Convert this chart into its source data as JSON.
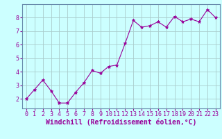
{
  "x": [
    0,
    1,
    2,
    3,
    4,
    5,
    6,
    7,
    8,
    9,
    10,
    11,
    12,
    13,
    14,
    15,
    16,
    17,
    18,
    19,
    20,
    21,
    22,
    23
  ],
  "y": [
    2.0,
    2.7,
    3.4,
    2.6,
    1.7,
    1.7,
    2.5,
    3.2,
    4.1,
    3.9,
    4.4,
    4.5,
    6.1,
    7.8,
    7.3,
    7.4,
    7.7,
    7.3,
    8.1,
    7.7,
    7.9,
    7.7,
    8.6,
    8.0
  ],
  "line_color": "#990099",
  "marker": "*",
  "marker_size": 3.5,
  "bg_color": "#ccffff",
  "grid_color": "#aacccc",
  "spine_color": "#6688aa",
  "xlabel": "Windchill (Refroidissement éolien,°C)",
  "xlabel_color": "#990099",
  "xlabel_fontsize": 7.0,
  "tick_color": "#990099",
  "tick_fontsize": 6.0,
  "ylim": [
    1.3,
    9.0
  ],
  "yticks": [
    2,
    3,
    4,
    5,
    6,
    7,
    8
  ],
  "xlim": [
    -0.5,
    23.5
  ],
  "xticks": [
    0,
    1,
    2,
    3,
    4,
    5,
    6,
    7,
    8,
    9,
    10,
    11,
    12,
    13,
    14,
    15,
    16,
    17,
    18,
    19,
    20,
    21,
    22,
    23
  ]
}
